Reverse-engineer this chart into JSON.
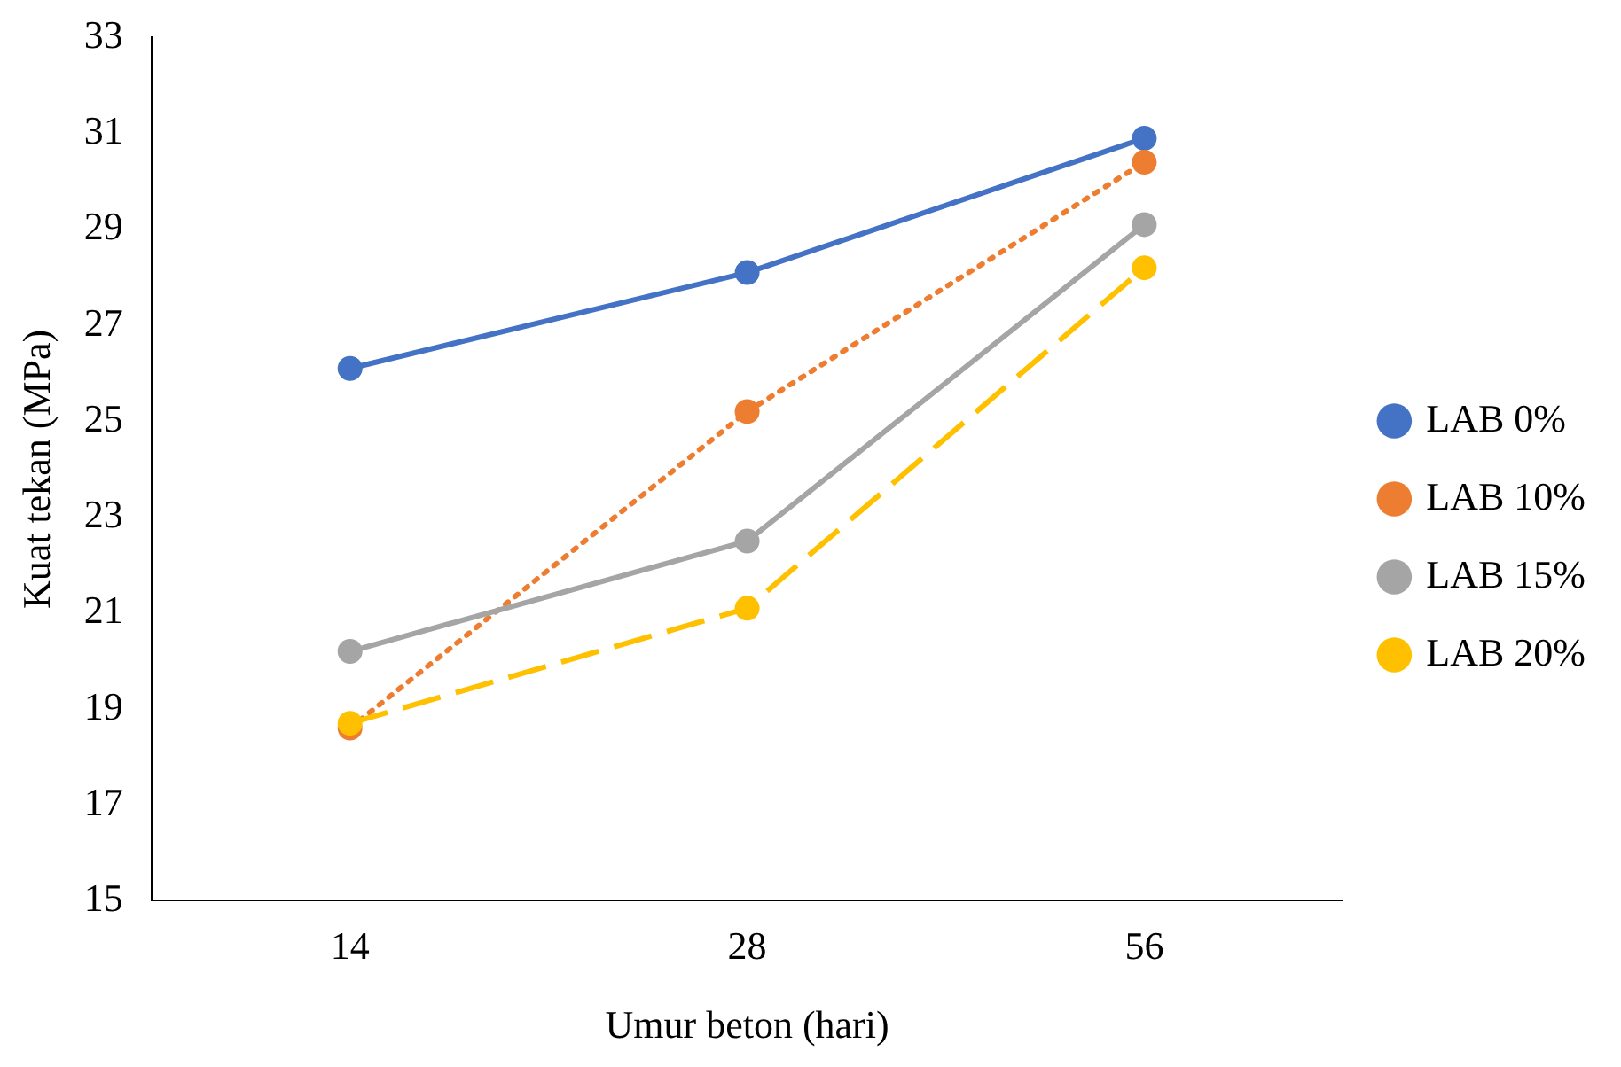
{
  "chart_data": {
    "type": "line",
    "xlabel": "Umur beton (hari)",
    "ylabel": "Kuat tekan (MPa)",
    "categories": [
      "14",
      "28",
      "56"
    ],
    "series": [
      {
        "name": "LAB 0%",
        "color": "#4472c4",
        "values": [
          26.1,
          28.1,
          30.9
        ],
        "line_style": "solid"
      },
      {
        "name": "LAB 10%",
        "color": "#ed7d31",
        "values": [
          18.6,
          25.2,
          30.4
        ],
        "line_style": "dotted"
      },
      {
        "name": "LAB 15%",
        "color": "#a5a5a5",
        "values": [
          20.2,
          22.5,
          29.1
        ],
        "line_style": "solid"
      },
      {
        "name": "LAB 20%",
        "color": "#ffc000",
        "values": [
          18.7,
          21.1,
          28.2
        ],
        "line_style": "dashed"
      }
    ],
    "ylim": [
      15,
      33
    ],
    "yticks": [
      15,
      17,
      19,
      21,
      23,
      25,
      27,
      29,
      31,
      33
    ],
    "grid": false,
    "legend": "right",
    "marker": "circle"
  }
}
